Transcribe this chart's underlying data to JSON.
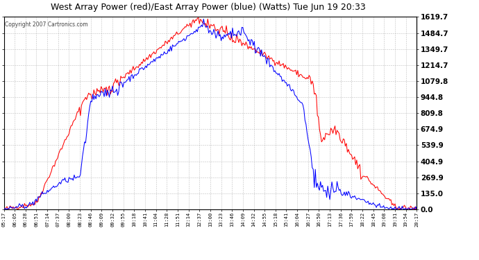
{
  "title": "West Array Power (red)/East Array Power (blue) (Watts) Tue Jun 19 20:33",
  "copyright": "Copyright 2007 Cartronics.com",
  "background_color": "#ffffff",
  "plot_bg_color": "#ffffff",
  "grid_color": "#aaaaaa",
  "red_color": "#ff0000",
  "blue_color": "#0000ff",
  "yticks": [
    0.0,
    135.0,
    269.9,
    404.9,
    539.9,
    674.9,
    809.8,
    944.8,
    1079.8,
    1214.7,
    1349.7,
    1484.7,
    1619.7
  ],
  "ymax": 1619.7,
  "ymin": 0.0,
  "xtick_labels": [
    "05:17",
    "06:05",
    "06:28",
    "06:51",
    "07:14",
    "07:37",
    "08:00",
    "08:23",
    "08:46",
    "09:09",
    "09:32",
    "09:55",
    "10:18",
    "10:41",
    "11:04",
    "11:28",
    "11:51",
    "12:14",
    "12:37",
    "13:00",
    "13:23",
    "13:46",
    "14:09",
    "14:32",
    "14:55",
    "15:18",
    "15:41",
    "16:04",
    "16:27",
    "16:50",
    "17:13",
    "17:36",
    "17:59",
    "18:22",
    "18:45",
    "19:08",
    "19:31",
    "19:54",
    "20:17"
  ]
}
